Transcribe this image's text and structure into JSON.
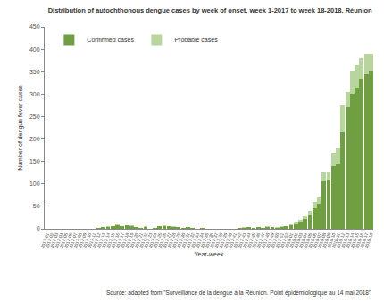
{
  "chart_data": {
    "type": "bar",
    "title": "Distribution of autochthonous dengue cases by week of onset, week 1-2017 to week 18-2018, Réunion",
    "x_label": "Year-week",
    "y_label": "Number of dengue fever cases",
    "annotation": "Source: adapted from \"Surveillance de la dengue à la Réunion. Point épidémiologique au 14 mai 2018\"",
    "categories": [
      "2017-01",
      "2017-02",
      "2017-03",
      "2017-04",
      "2017-05",
      "2017-06",
      "2017-07",
      "2017-08",
      "2017-09",
      "2017-10",
      "2017-11",
      "2017-12",
      "2017-13",
      "2017-14",
      "2017-15",
      "2017-16",
      "2017-17",
      "2017-18",
      "2017-19",
      "2017-20",
      "2017-21",
      "2017-22",
      "2017-23",
      "2017-24",
      "2017-25",
      "2017-26",
      "2017-27",
      "2017-28",
      "2017-29",
      "2017-30",
      "2017-31",
      "2017-32",
      "2017-33",
      "2017-34",
      "2017-35",
      "2017-36",
      "2017-37",
      "2017-38",
      "2017-39",
      "2017-40",
      "2017-41",
      "2017-42",
      "2017-43",
      "2017-44",
      "2017-45",
      "2017-46",
      "2017-47",
      "2017-48",
      "2017-49",
      "2017-50",
      "2017-51",
      "2017-52",
      "2018-01",
      "2018-02",
      "2018-03",
      "2018-04",
      "2018-05",
      "2018-06",
      "2018-07",
      "2018-08",
      "2018-09",
      "2018-10",
      "2018-11",
      "2018-12",
      "2018-13",
      "2018-14",
      "2018-15",
      "2018-16",
      "2018-17",
      "2018-18"
    ],
    "series": [
      {
        "name": "Confirmed cases",
        "color": "#6f9e43",
        "values": [
          0,
          1,
          0,
          0,
          1,
          0,
          1,
          0,
          0,
          1,
          1,
          2,
          3,
          4,
          6,
          8,
          5,
          7,
          6,
          3,
          2,
          4,
          1,
          2,
          5,
          6,
          5,
          4,
          3,
          2,
          3,
          2,
          1,
          2,
          1,
          0,
          1,
          0,
          1,
          0,
          1,
          2,
          2,
          3,
          2,
          3,
          2,
          4,
          3,
          2,
          4,
          5,
          7,
          10,
          15,
          22,
          30,
          45,
          55,
          105,
          110,
          140,
          145,
          215,
          270,
          300,
          315,
          335,
          345,
          350
        ]
      },
      {
        "name": "Probable cases",
        "color": "#b7d59c",
        "values": [
          0,
          0,
          0,
          0,
          0,
          0,
          0,
          0,
          0,
          0,
          0,
          0,
          0,
          1,
          0,
          1,
          0,
          1,
          1,
          0,
          0,
          1,
          0,
          0,
          1,
          1,
          0,
          1,
          0,
          0,
          0,
          0,
          0,
          0,
          0,
          0,
          0,
          0,
          0,
          0,
          0,
          0,
          1,
          0,
          0,
          1,
          0,
          1,
          0,
          1,
          1,
          1,
          2,
          3,
          4,
          6,
          10,
          15,
          15,
          20,
          18,
          30,
          35,
          60,
          35,
          50,
          50,
          45,
          45,
          40
        ]
      }
    ],
    "stacked": true,
    "ylim": [
      0,
      450
    ],
    "yticks": [
      0,
      50,
      100,
      150,
      200,
      250,
      300,
      350,
      400,
      450
    ],
    "grid": false,
    "legend": "top-left"
  }
}
